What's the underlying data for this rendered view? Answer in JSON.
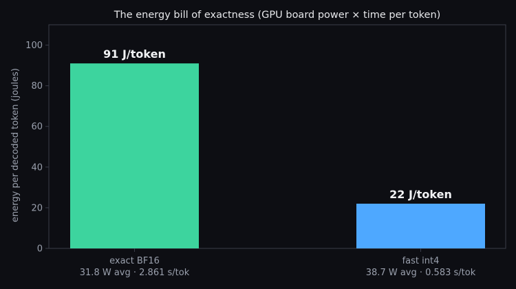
{
  "chart_data": {
    "type": "bar",
    "title": "The energy bill of exactness (GPU board power × time per token)",
    "ylabel": "energy per decoded token (joules)",
    "ylim": [
      0,
      110
    ],
    "yticks": [
      0,
      20,
      40,
      60,
      80,
      100
    ],
    "grid": false,
    "categories": [
      {
        "label": "exact BF16",
        "sublabel": "31.8 W avg · 2.861 s/tok"
      },
      {
        "label": "fast int4",
        "sublabel": "38.7 W avg · 0.583 s/tok"
      }
    ],
    "values": [
      91,
      22
    ],
    "data_labels": [
      "91 J/token",
      "22 J/token"
    ],
    "colors": [
      "#3dd49e",
      "#4ea8ff"
    ],
    "axis_color": "#3a3d4a",
    "background": "#0d0e13"
  }
}
